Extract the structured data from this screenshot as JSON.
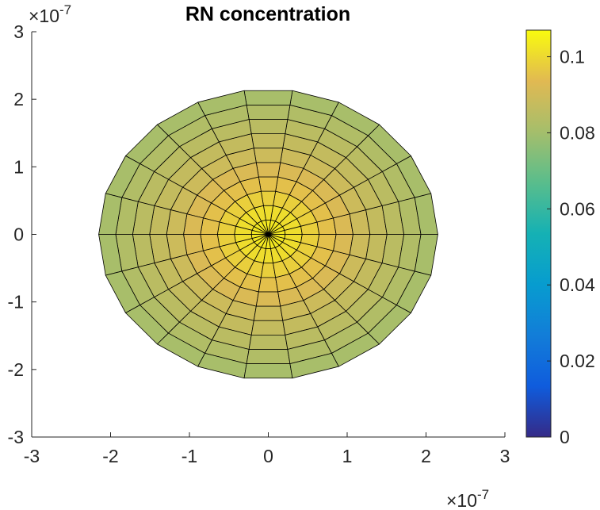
{
  "chart_data": {
    "type": "heatmap",
    "title": "RN concentration",
    "plot_kind": "polar surface (pcolor) over a disk, viewed from top",
    "x_axis": {
      "ticks": [
        -3,
        -2,
        -1,
        0,
        1,
        2,
        3
      ],
      "tick_labels": [
        "-3",
        "-2",
        "-1",
        "0",
        "1",
        "2",
        "3"
      ],
      "multiplier": "×10^-7",
      "multiplier_base": "×10",
      "multiplier_exponent": "-7",
      "lim": [
        -3e-07,
        3e-07
      ]
    },
    "y_axis": {
      "ticks": [
        -3,
        -2,
        -1,
        0,
        1,
        2,
        3
      ],
      "tick_labels": [
        "-3",
        "-2",
        "-1",
        "0",
        "1",
        "2",
        "3"
      ],
      "multiplier": "×10^-7",
      "multiplier_base": "×10",
      "multiplier_exponent": "-7",
      "lim": [
        -3e-07,
        3e-07
      ]
    },
    "disk": {
      "radius": 2.15e-07,
      "radial_rings": 10,
      "angular_sectors": 22
    },
    "values_by_ring": [
      0.103,
      0.101,
      0.098,
      0.095,
      0.092,
      0.089,
      0.087,
      0.085,
      0.083,
      0.081
    ],
    "colorbar": {
      "colormap": "parula",
      "clim": [
        0,
        0.107
      ],
      "ticks": [
        0,
        0.02,
        0.04,
        0.06,
        0.08,
        0.1
      ],
      "tick_labels": [
        "0",
        "0.02",
        "0.04",
        "0.06",
        "0.08",
        "0.1"
      ]
    },
    "grid": false,
    "edge_color": "#000000"
  }
}
